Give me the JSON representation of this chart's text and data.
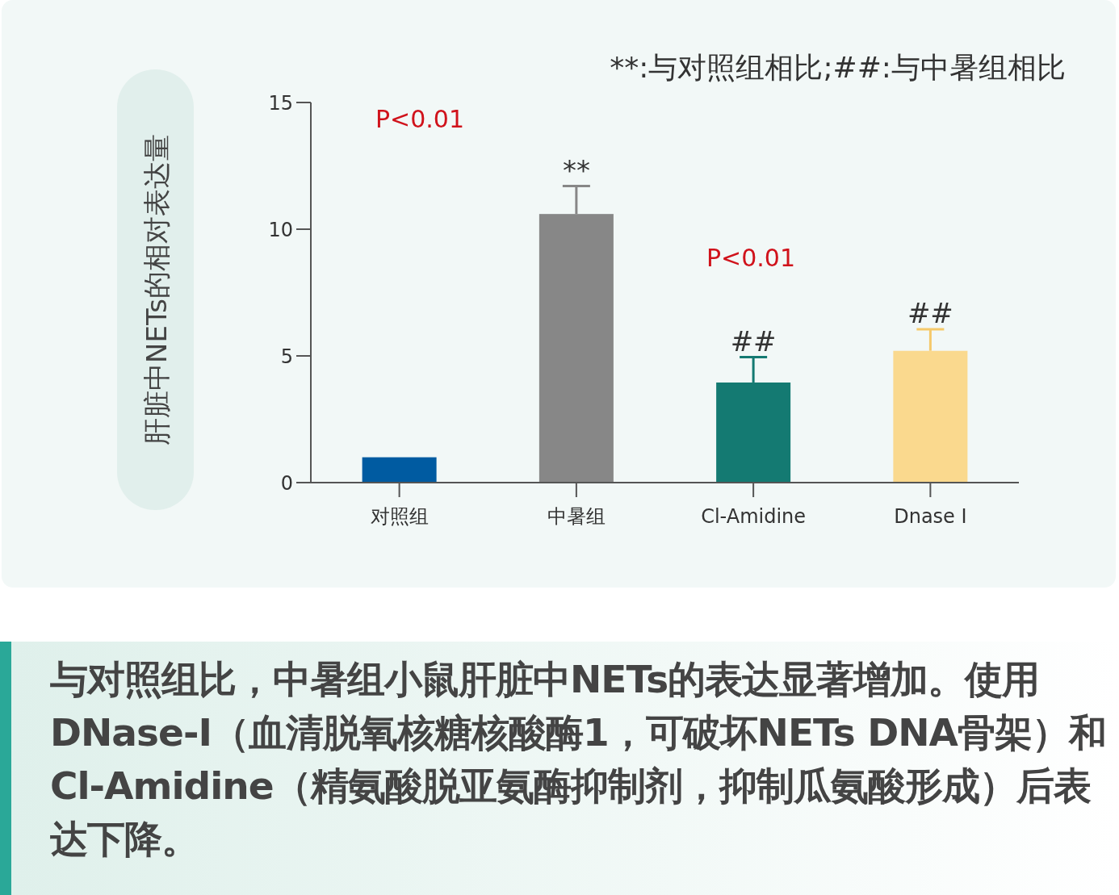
{
  "chart_data": {
    "type": "bar",
    "ylabel": "肝脏中NETs的相对表达量",
    "categories": [
      "对照组",
      "中暑组",
      "Cl-Amidine",
      "Dnase I"
    ],
    "values": [
      1.0,
      10.6,
      3.95,
      5.2
    ],
    "colors": [
      "#005ba1",
      "#878787",
      "#147a72",
      "#fad98e"
    ],
    "errors": [
      null,
      1.1,
      1.0,
      0.85
    ],
    "ylim": [
      0,
      15
    ],
    "yticks": [
      0,
      5,
      10,
      15
    ],
    "grid": false,
    "annotations": [
      "**:与对照组相比;##:与中暑组相比",
      "P<0.01",
      {
        "text": "**",
        "x": "中暑组",
        "y": 11.7
      },
      "P<0.01",
      {
        "text": "##",
        "x": "Cl-Amidine",
        "y": 4.95
      },
      {
        "text": "##",
        "x": "Dnase I",
        "y": 6.05
      },
      "与对照组比，中暑组小鼠肝脏中NETs的表达显著增加。使用DNase-I（血清脱氧核糖核酸酶1，可破坏NETs  DNA骨架）和Cl-Amidine（精氨酸脱亚氨酶抑制剂，抑制瓜氨酸形成）后表达下降。"
    ]
  }
}
